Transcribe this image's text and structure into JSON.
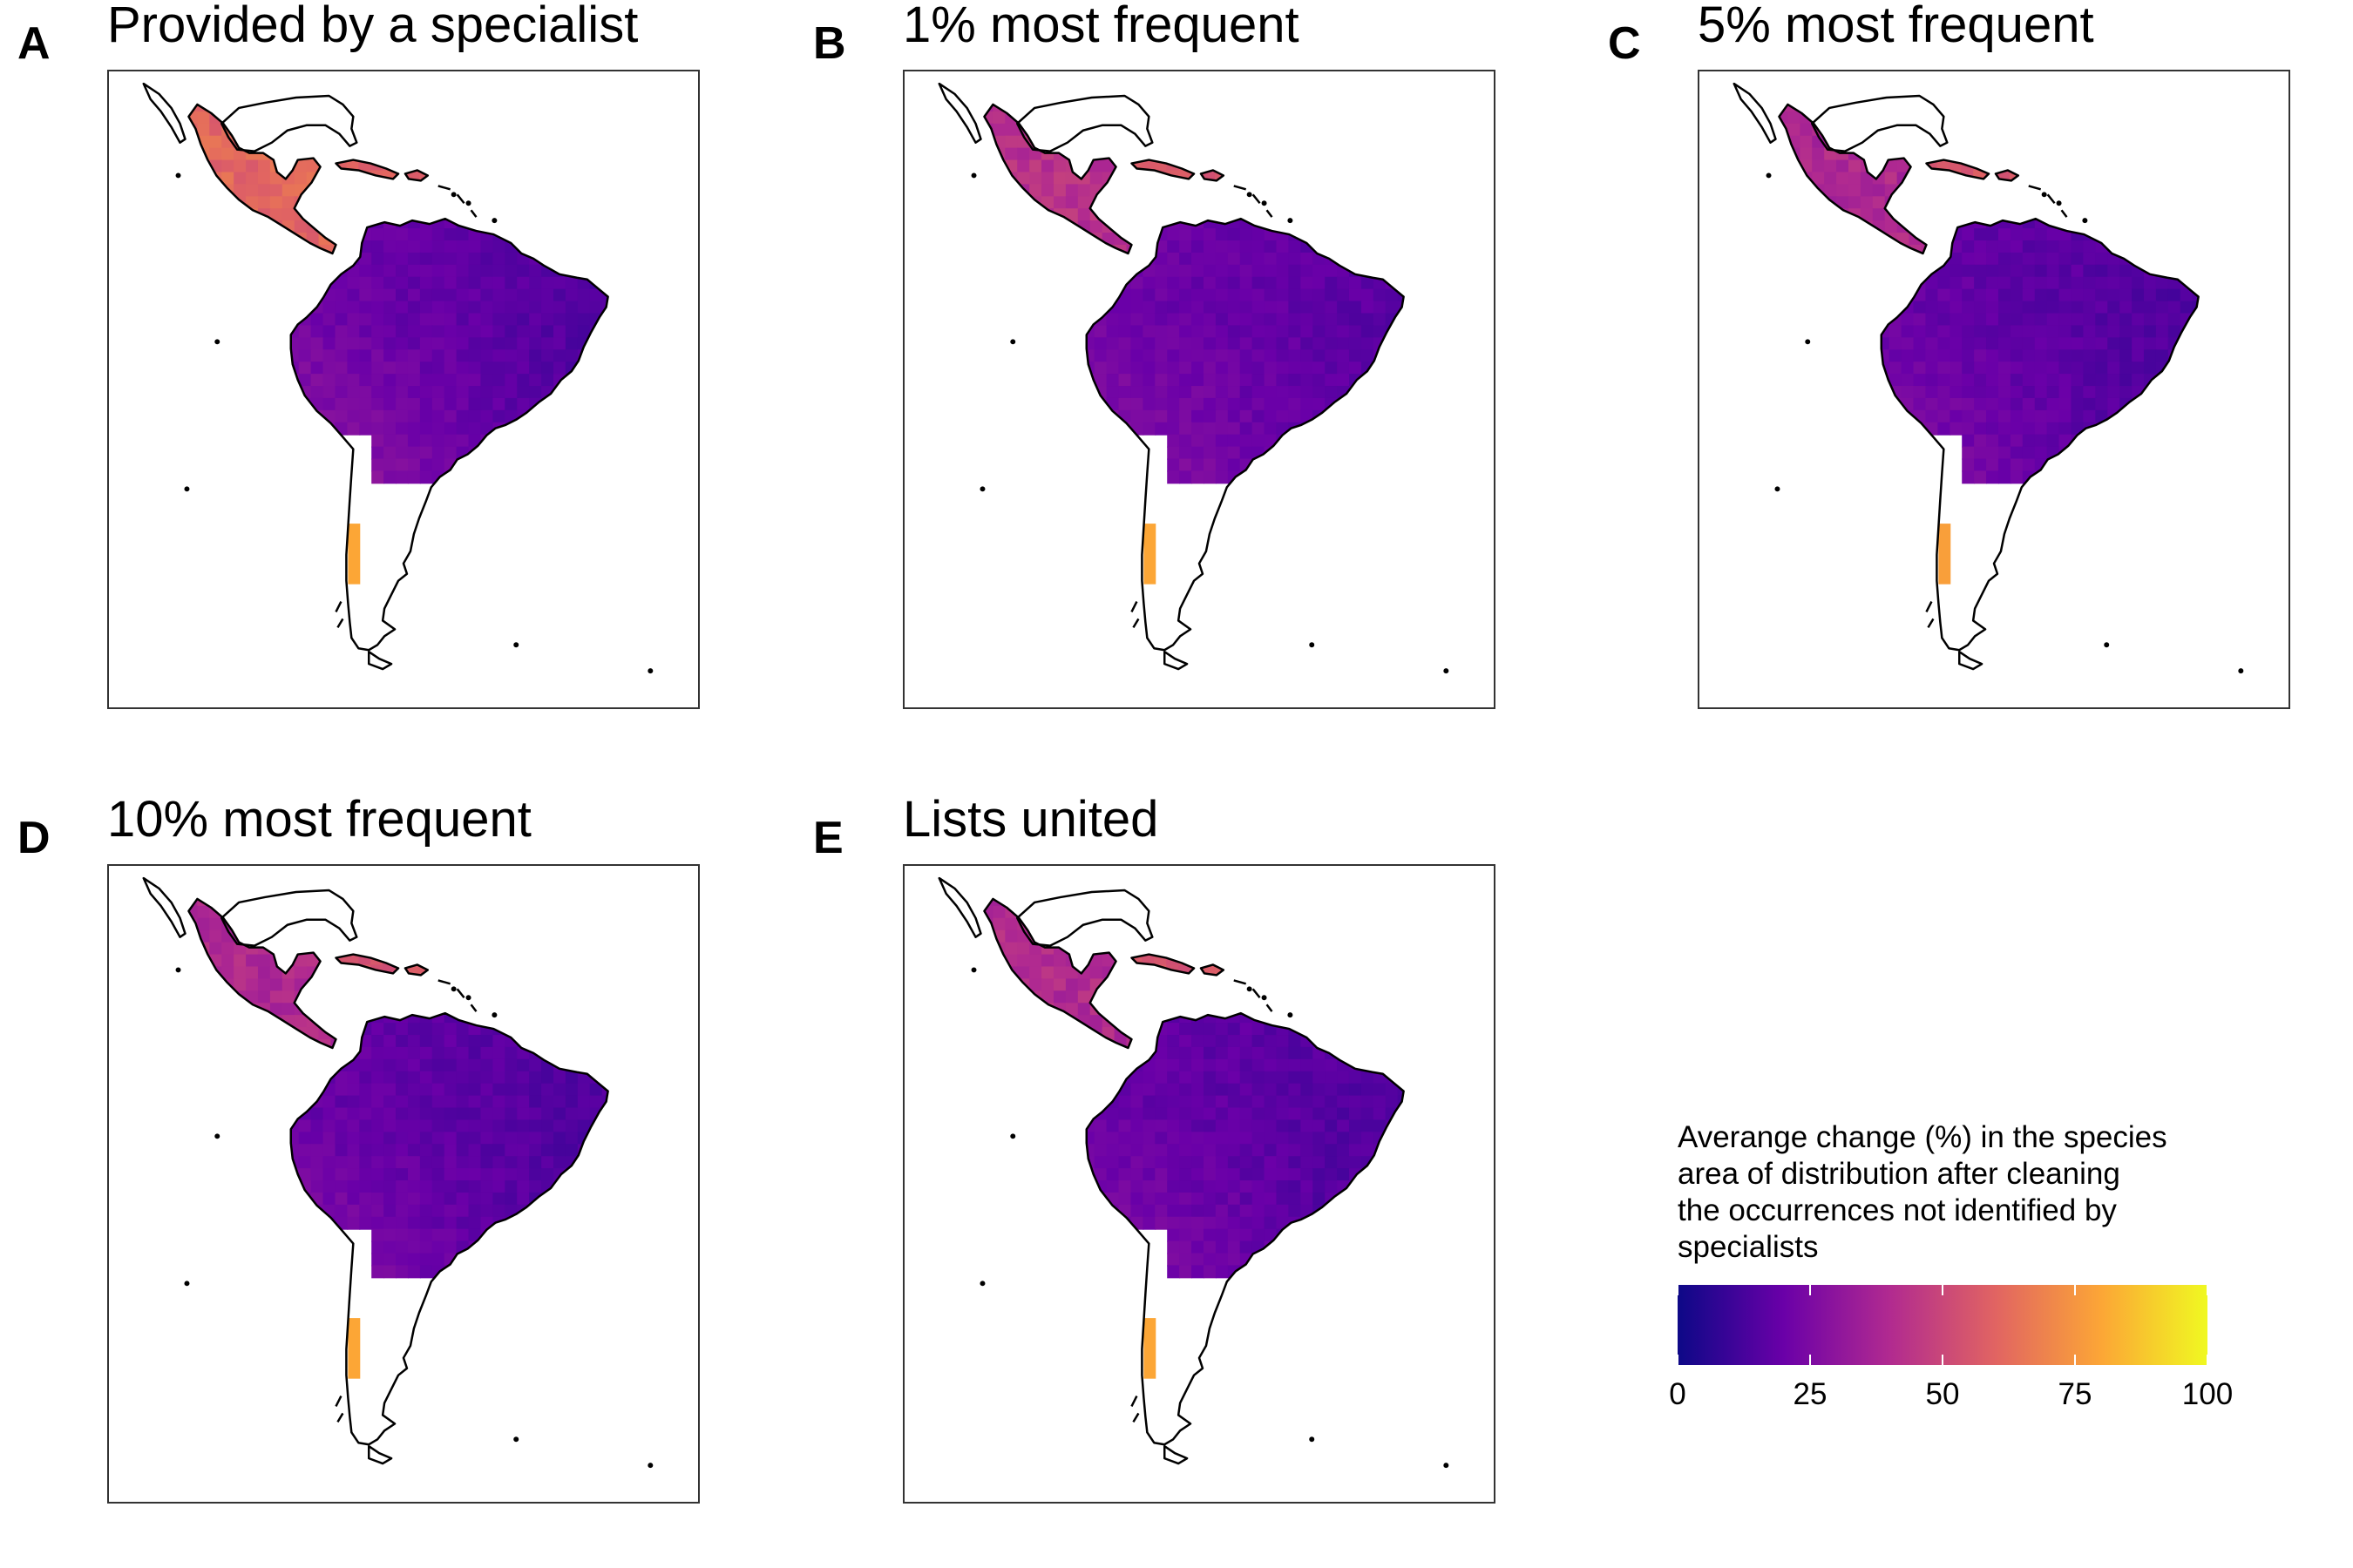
{
  "colors": {
    "scale": [
      "#0d0887",
      "#6a00a8",
      "#b12a90",
      "#e16462",
      "#fca636",
      "#f0f921"
    ],
    "coastline": "#000000",
    "frame": "#333333"
  },
  "panels": [
    {
      "letter": "A",
      "title": "Provided by a specialist",
      "mean_change": {
        "mexico": 62,
        "central_america": 60,
        "caribbean": 58,
        "south_america_north": 22,
        "south_america_east": 14,
        "south_america_southwest": 38,
        "chile": 80
      }
    },
    {
      "letter": "B",
      "title": "1% most frequent",
      "mean_change": {
        "mexico": 45,
        "central_america": 40,
        "caribbean": 55,
        "south_america_north": 22,
        "south_america_east": 16,
        "south_america_southwest": 34,
        "chile": 80
      }
    },
    {
      "letter": "C",
      "title": "5% most frequent",
      "mean_change": {
        "mexico": 40,
        "central_america": 38,
        "caribbean": 56,
        "south_america_north": 20,
        "south_america_east": 14,
        "south_america_southwest": 32,
        "chile": 78
      }
    },
    {
      "letter": "D",
      "title": "10% most frequent",
      "mean_change": {
        "mexico": 42,
        "central_america": 36,
        "caribbean": 55,
        "south_america_north": 20,
        "south_america_east": 14,
        "south_america_southwest": 32,
        "chile": 80
      }
    },
    {
      "letter": "E",
      "title": "Lists united",
      "mean_change": {
        "mexico": 42,
        "central_america": 38,
        "caribbean": 55,
        "south_america_north": 20,
        "south_america_east": 14,
        "south_america_southwest": 32,
        "chile": 80
      }
    }
  ],
  "legend": {
    "title": "Averange change (%) in the species\narea of distribution after cleaning\nthe occurrences not identified by\nspecialists",
    "ticks": [
      "0",
      "25",
      "50",
      "75",
      "100"
    ],
    "tick_values": [
      0,
      25,
      50,
      75,
      100
    ],
    "range": [
      0,
      100
    ]
  }
}
